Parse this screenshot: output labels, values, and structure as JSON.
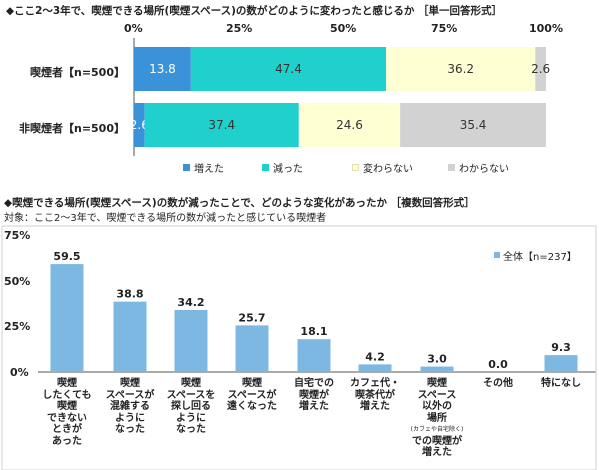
{
  "charts": [
    {
      "title": "◆ここ2～3年で、喫煙できる場所(喫煙スペース)の数がどのように変わったと感じるか ［単一回答形式］",
      "type": "stacked_bar_horizontal",
      "xticks": [
        "0%",
        "25%",
        "50%",
        "75%",
        "100%"
      ],
      "series_names": [
        "増えた",
        "減った",
        "変わらない",
        "わからない"
      ],
      "colors": [
        "#3a93d9",
        "#1fd0cc",
        "#ffffd4",
        "#d2d2d2"
      ],
      "rows": [
        {
          "label": "喫煙者【n=500】",
          "values": [
            13.8,
            47.4,
            36.2,
            2.6
          ]
        },
        {
          "label": "非喫煙者【n=500】",
          "values": [
            2.6,
            37.4,
            24.6,
            35.4
          ]
        }
      ]
    },
    {
      "title": "◆喫煙できる場所(喫煙スペース)の数が減ったことで、どのような変化があったか ［複数回答形式］",
      "subtitle": "対象：ここ2～3年で、喫煙できる場所の数が減ったと感じている喫煙者",
      "type": "bar",
      "yticks": [
        "75%",
        "50%",
        "25%",
        "0%"
      ],
      "ylim": [
        0,
        75
      ],
      "legend": "全体【n=237】",
      "color": "#7cb8e2",
      "categories": [
        {
          "lines": [
            "喫煙",
            "したくても",
            "喫煙",
            "できない",
            "ときが",
            "あった"
          ]
        },
        {
          "lines": [
            "喫煙",
            "スペースが",
            "混雑する",
            "ように",
            "なった"
          ]
        },
        {
          "lines": [
            "喫煙",
            "スペースを",
            "探し回る",
            "ように",
            "なった"
          ]
        },
        {
          "lines": [
            "喫煙",
            "スペースが",
            "遠くなった"
          ]
        },
        {
          "lines": [
            "自宅での",
            "喫煙が",
            "増えた"
          ]
        },
        {
          "lines": [
            "カフェ代・",
            "喫茶代が",
            "増えた"
          ]
        },
        {
          "lines": [
            "喫煙",
            "スペース",
            "以外の",
            "場所",
            "(カフェや自宅除く)",
            "での喫煙が",
            "増えた"
          ],
          "small_line": 4
        },
        {
          "lines": [
            "その他"
          ]
        },
        {
          "lines": [
            "特になし"
          ]
        }
      ],
      "values": [
        "59.5",
        "38.8",
        "34.2",
        "25.7",
        "18.1",
        "4.2",
        "3.0",
        "0.0",
        "9.3"
      ]
    }
  ],
  "chart_data": [
    {
      "type": "bar",
      "orientation": "horizontal_stacked",
      "title": "◆ここ2～3年で、喫煙できる場所(喫煙スペース)の数がどのように変わったと感じるか ［単一回答形式］",
      "categories": [
        "喫煙者【n=500】",
        "非喫煙者【n=500】"
      ],
      "series": [
        {
          "name": "増えた",
          "values": [
            13.8,
            2.6
          ]
        },
        {
          "name": "減った",
          "values": [
            47.4,
            37.4
          ]
        },
        {
          "name": "変わらない",
          "values": [
            36.2,
            24.6
          ]
        },
        {
          "name": "わからない",
          "values": [
            2.6,
            35.4
          ]
        }
      ],
      "xlim": [
        0,
        100
      ],
      "legend": "bottom"
    },
    {
      "type": "bar",
      "title": "◆喫煙できる場所(喫煙スペース)の数が減ったことで、どのような変化があったか ［複数回答形式］",
      "categories": [
        "喫煙したくても喫煙できないときがあった",
        "喫煙スペースが混雑するようになった",
        "喫煙スペースを探し回るようになった",
        "喫煙スペースが遠くなった",
        "自宅での喫煙が増えた",
        "カフェ代・喫茶代が増えた",
        "喫煙スペース以外の場所(カフェや自宅除く)での喫煙が増えた",
        "その他",
        "特になし"
      ],
      "series": [
        {
          "name": "全体【n=237】",
          "values": [
            59.5,
            38.8,
            34.2,
            25.7,
            18.1,
            4.2,
            3.0,
            0.0,
            9.3
          ]
        }
      ],
      "ylim": [
        0,
        75
      ],
      "legend": "top-right"
    }
  ]
}
